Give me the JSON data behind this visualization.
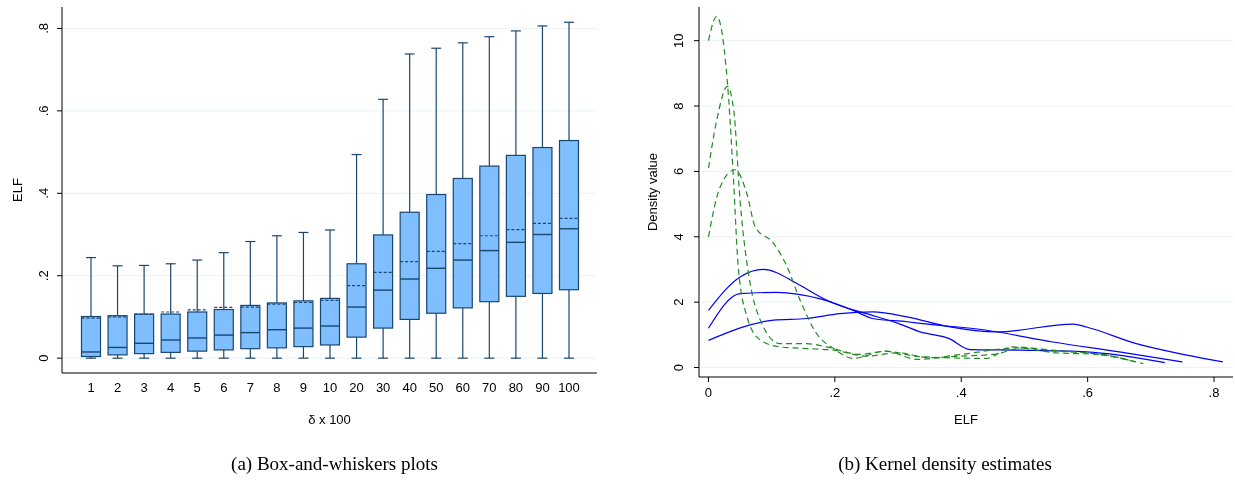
{
  "chart_data": [
    {
      "type": "box",
      "title": "(a) Box-and-whiskers plots",
      "xlabel": "δ x 100",
      "ylabel": "ELF",
      "color": "#80bfff",
      "grid": "y",
      "categories": [
        "1",
        "2",
        "3",
        "4",
        "5",
        "6",
        "7",
        "8",
        "9",
        "10",
        "20",
        "30",
        "40",
        "50",
        "60",
        "70",
        "80",
        "90",
        "100"
      ],
      "ylim": [
        -0.036,
        0.852
      ],
      "yticks": [
        0,
        {
          "value": 0.2,
          "label": ".2"
        },
        {
          "value": 0.4,
          "label": ".4"
        },
        {
          "value": 0.6,
          "label": ".6"
        },
        {
          "value": 0.8,
          "label": ".8"
        }
      ],
      "boxes": [
        {
          "low": 0,
          "q1": 0.004,
          "median": 0.015,
          "q3": 0.101,
          "high": 0.244,
          "mean": 0.097
        },
        {
          "low": 0,
          "q1": 0.008,
          "median": 0.026,
          "q3": 0.103,
          "high": 0.224,
          "mean": 0.1
        },
        {
          "low": 0,
          "q1": 0.011,
          "median": 0.036,
          "q3": 0.107,
          "high": 0.225,
          "mean": 0.106
        },
        {
          "low": 0,
          "q1": 0.014,
          "median": 0.044,
          "q3": 0.107,
          "high": 0.229,
          "mean": 0.112
        },
        {
          "low": 0,
          "q1": 0.017,
          "median": 0.049,
          "q3": 0.112,
          "high": 0.238,
          "mean": 0.117
        },
        {
          "low": 0,
          "q1": 0.02,
          "median": 0.056,
          "q3": 0.118,
          "high": 0.256,
          "mean": 0.123
        },
        {
          "low": 0,
          "q1": 0.023,
          "median": 0.062,
          "q3": 0.128,
          "high": 0.283,
          "mean": 0.124
        },
        {
          "low": 0,
          "q1": 0.025,
          "median": 0.069,
          "q3": 0.134,
          "high": 0.297,
          "mean": 0.131
        },
        {
          "low": 0,
          "q1": 0.028,
          "median": 0.073,
          "q3": 0.139,
          "high": 0.305,
          "mean": 0.135
        },
        {
          "low": 0,
          "q1": 0.032,
          "median": 0.078,
          "q3": 0.145,
          "high": 0.311,
          "mean": 0.14
        },
        {
          "low": 0,
          "q1": 0.051,
          "median": 0.124,
          "q3": 0.229,
          "high": 0.494,
          "mean": 0.176
        },
        {
          "low": 0,
          "q1": 0.073,
          "median": 0.165,
          "q3": 0.299,
          "high": 0.628,
          "mean": 0.208
        },
        {
          "low": 0,
          "q1": 0.094,
          "median": 0.192,
          "q3": 0.354,
          "high": 0.738,
          "mean": 0.234
        },
        {
          "low": 0,
          "q1": 0.109,
          "median": 0.218,
          "q3": 0.397,
          "high": 0.752,
          "mean": 0.259
        },
        {
          "low": 0,
          "q1": 0.122,
          "median": 0.238,
          "q3": 0.436,
          "high": 0.765,
          "mean": 0.278
        },
        {
          "low": 0,
          "q1": 0.137,
          "median": 0.261,
          "q3": 0.466,
          "high": 0.78,
          "mean": 0.297
        },
        {
          "low": 0,
          "q1": 0.15,
          "median": 0.281,
          "q3": 0.492,
          "high": 0.794,
          "mean": 0.312
        },
        {
          "low": 0,
          "q1": 0.157,
          "median": 0.3,
          "q3": 0.511,
          "high": 0.806,
          "mean": 0.327
        },
        {
          "low": 0,
          "q1": 0.166,
          "median": 0.314,
          "q3": 0.528,
          "high": 0.815,
          "mean": 0.339
        }
      ]
    },
    {
      "type": "line",
      "title": "(b) Kernel density estimates",
      "xlabel": "ELF",
      "ylabel": "Density value",
      "grid": "y",
      "xlim": [
        -0.015,
        0.83
      ],
      "ylim": [
        -0.29,
        11.03
      ],
      "xticks": [
        0,
        {
          "value": 0.2,
          "label": ".2"
        },
        {
          "value": 0.4,
          "label": ".4"
        },
        {
          "value": 0.6,
          "label": ".6"
        },
        {
          "value": 0.8,
          "label": ".8"
        }
      ],
      "yticks": [
        0,
        2,
        4,
        6,
        8,
        10
      ],
      "series": [
        {
          "color": "#0000ff",
          "line_style": "solid",
          "x": [
            0,
            0.05,
            0.087,
            0.14,
            0.177,
            0.2,
            0.25,
            0.3,
            0.335,
            0.38,
            0.414,
            0.493,
            0.598,
            0.722
          ],
          "values": [
            1.75,
            2.77,
            3.0,
            2.57,
            2.16,
            1.95,
            1.65,
            1.35,
            1.09,
            0.89,
            0.55,
            0.53,
            0.48,
            0.15
          ]
        },
        {
          "color": "#0000ff",
          "line_style": "solid",
          "x": [
            0,
            0.05,
            0.108,
            0.177,
            0.229,
            0.26,
            0.314,
            0.335,
            0.44,
            0.545,
            0.65,
            0.75
          ],
          "values": [
            1.2,
            2.26,
            2.3,
            2.1,
            1.75,
            1.5,
            1.4,
            1.35,
            1.14,
            0.78,
            0.48,
            0.17
          ]
        },
        {
          "color": "#0000ff",
          "line_style": "solid",
          "x": [
            0,
            0.103,
            0.155,
            0.208,
            0.26,
            0.314,
            0.38,
            0.456,
            0.577,
            0.598,
            0.677,
            0.757,
            0.814
          ],
          "values": [
            0.83,
            1.45,
            1.5,
            1.65,
            1.7,
            1.55,
            1.25,
            1.09,
            1.33,
            1.24,
            0.73,
            0.38,
            0.17
          ]
        },
        {
          "color": "#228b22",
          "line_style": "dashed",
          "x": [
            0,
            0.013,
            0.032,
            0.04,
            0.047,
            0.061,
            0.082,
            0.113,
            0.155,
            0.198,
            0.25,
            0.3,
            0.35,
            0.4,
            0.45,
            0.5,
            0.55,
            0.6,
            0.65,
            0.68
          ],
          "values": [
            10.0,
            10.74,
            8.2,
            5.6,
            3.1,
            1.55,
            0.84,
            0.63,
            0.58,
            0.53,
            0.35,
            0.45,
            0.3,
            0.35,
            0.4,
            0.6,
            0.5,
            0.45,
            0.3,
            0.15
          ]
        },
        {
          "color": "#228b22",
          "line_style": "dashed",
          "x": [
            0,
            0.013,
            0.03,
            0.04,
            0.05,
            0.066,
            0.082,
            0.113,
            0.155,
            0.187,
            0.24,
            0.28,
            0.335,
            0.44,
            0.48,
            0.545,
            0.625,
            0.688
          ],
          "values": [
            6.1,
            7.56,
            8.6,
            7.87,
            5.1,
            2.57,
            1.45,
            0.73,
            0.73,
            0.63,
            0.4,
            0.5,
            0.33,
            0.28,
            0.63,
            0.53,
            0.38,
            0.12
          ]
        },
        {
          "color": "#228b22",
          "line_style": "dashed",
          "x": [
            0,
            0.018,
            0.042,
            0.061,
            0.074,
            0.103,
            0.124,
            0.145,
            0.171,
            0.198,
            0.229,
            0.28,
            0.33,
            0.4,
            0.49,
            0.55,
            0.62,
            0.67
          ],
          "values": [
            4.0,
            5.5,
            6.05,
            5.3,
            4.3,
            3.8,
            3.1,
            2.06,
            1.04,
            0.58,
            0.28,
            0.5,
            0.25,
            0.4,
            0.6,
            0.45,
            0.4,
            0.2
          ]
        }
      ]
    }
  ]
}
